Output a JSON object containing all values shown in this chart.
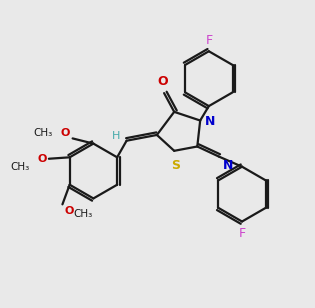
{
  "bg_color": "#e9e9e9",
  "bond_color": "#1a1a1a",
  "S_color": "#ccaa00",
  "N_color": "#0000cc",
  "O_color": "#cc0000",
  "F_color": "#cc44cc",
  "H_color": "#44aaaa",
  "lw": 1.6,
  "xlim": [
    0,
    10
  ],
  "ylim": [
    0,
    10
  ]
}
